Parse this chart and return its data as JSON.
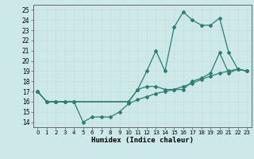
{
  "title": "",
  "xlabel": "Humidex (Indice chaleur)",
  "ylabel": "",
  "bg_color": "#cce8e8",
  "grid_color": "#b0d0d0",
  "line_color": "#2e7d72",
  "xlim": [
    -0.5,
    23.5
  ],
  "ylim": [
    13.5,
    25.5
  ],
  "yticks": [
    14,
    15,
    16,
    17,
    18,
    19,
    20,
    21,
    22,
    23,
    24,
    25
  ],
  "xticks": [
    0,
    1,
    2,
    3,
    4,
    5,
    6,
    7,
    8,
    9,
    10,
    11,
    12,
    13,
    14,
    15,
    16,
    17,
    18,
    19,
    20,
    21,
    22,
    23
  ],
  "series": [
    {
      "x": [
        0,
        1,
        2,
        3,
        4,
        5,
        6,
        7,
        8,
        9,
        10,
        11,
        12,
        13,
        14,
        15,
        16,
        17,
        18,
        19,
        20,
        21,
        22,
        23
      ],
      "y": [
        17,
        16,
        16,
        16,
        16,
        14,
        14.5,
        14.5,
        14.5,
        15.0,
        15.8,
        16.2,
        16.5,
        16.8,
        17.0,
        17.2,
        17.5,
        17.8,
        18.2,
        18.5,
        18.8,
        19.0,
        19.2,
        19.0
      ]
    },
    {
      "x": [
        0,
        1,
        2,
        3,
        4,
        10,
        11,
        12,
        13,
        14,
        15,
        16,
        17,
        18,
        19,
        20,
        21,
        22,
        23
      ],
      "y": [
        17,
        16,
        16,
        16,
        16,
        16.0,
        17.2,
        17.5,
        17.5,
        17.2,
        17.2,
        17.2,
        18.0,
        18.3,
        18.8,
        20.8,
        18.8,
        19.2,
        19.0
      ]
    },
    {
      "x": [
        0,
        1,
        2,
        3,
        4,
        10,
        11,
        12,
        13,
        14,
        15,
        16,
        17,
        18,
        19,
        20,
        21,
        22,
        23
      ],
      "y": [
        17,
        16,
        16,
        16,
        16,
        16.0,
        17.2,
        19.0,
        21.0,
        19.0,
        23.3,
        24.8,
        24.0,
        23.5,
        23.5,
        24.2,
        20.8,
        19.2,
        19.0
      ]
    }
  ]
}
